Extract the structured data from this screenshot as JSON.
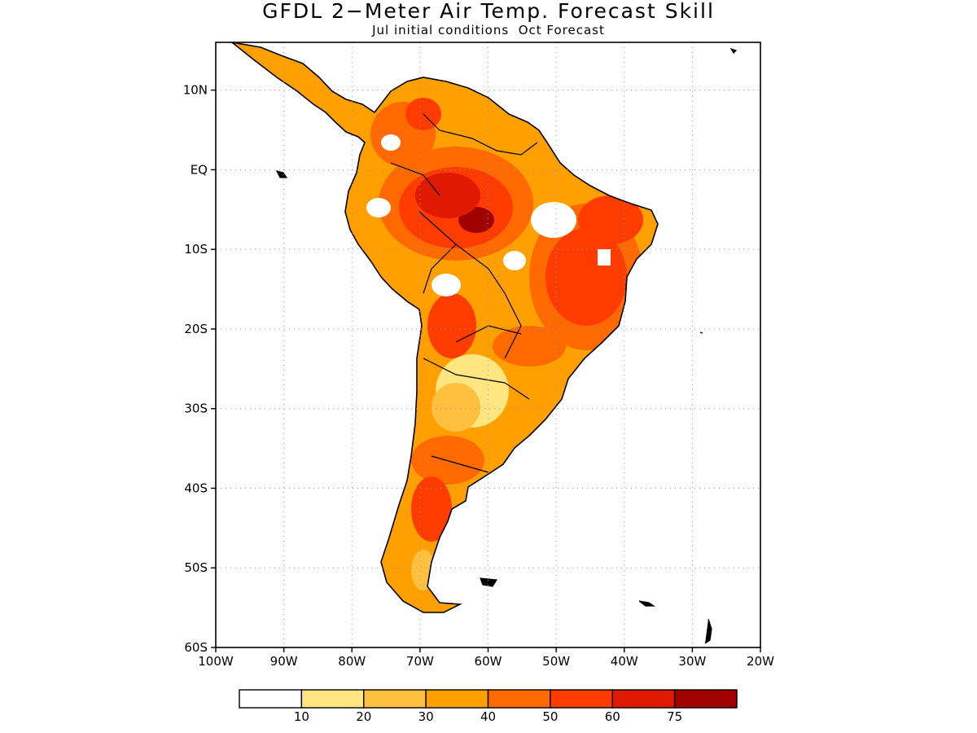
{
  "title": "GFDL 2−Meter Air Temp. Forecast Skill",
  "subtitle": "Jul initial conditions  Oct Forecast",
  "map": {
    "extent": {
      "lon": [
        -100,
        -20
      ],
      "lat": [
        -60,
        16
      ]
    },
    "lat_ticks": [
      {
        "value": 10,
        "label": "10N"
      },
      {
        "value": 0,
        "label": "EQ"
      },
      {
        "value": -10,
        "label": "10S"
      },
      {
        "value": -20,
        "label": "20S"
      },
      {
        "value": -30,
        "label": "30S"
      },
      {
        "value": -40,
        "label": "40S"
      },
      {
        "value": -50,
        "label": "50S"
      },
      {
        "value": -60,
        "label": "60S"
      }
    ],
    "lon_ticks": [
      {
        "value": -100,
        "label": "100W"
      },
      {
        "value": -90,
        "label": "90W"
      },
      {
        "value": -80,
        "label": "80W"
      },
      {
        "value": -70,
        "label": "70W"
      },
      {
        "value": -60,
        "label": "60W"
      },
      {
        "value": -50,
        "label": "50W"
      },
      {
        "value": -40,
        "label": "40W"
      },
      {
        "value": -30,
        "label": "30W"
      },
      {
        "value": -20,
        "label": "20W"
      }
    ],
    "grid": true,
    "colorbar": {
      "colors": [
        "#ffffff",
        "#ffe680",
        "#ffc040",
        "#ffa000",
        "#ff6a00",
        "#ff3c00",
        "#e01a00",
        "#a00000"
      ],
      "labels": [
        "10",
        "20",
        "30",
        "40",
        "50",
        "60",
        "75"
      ]
    }
  }
}
